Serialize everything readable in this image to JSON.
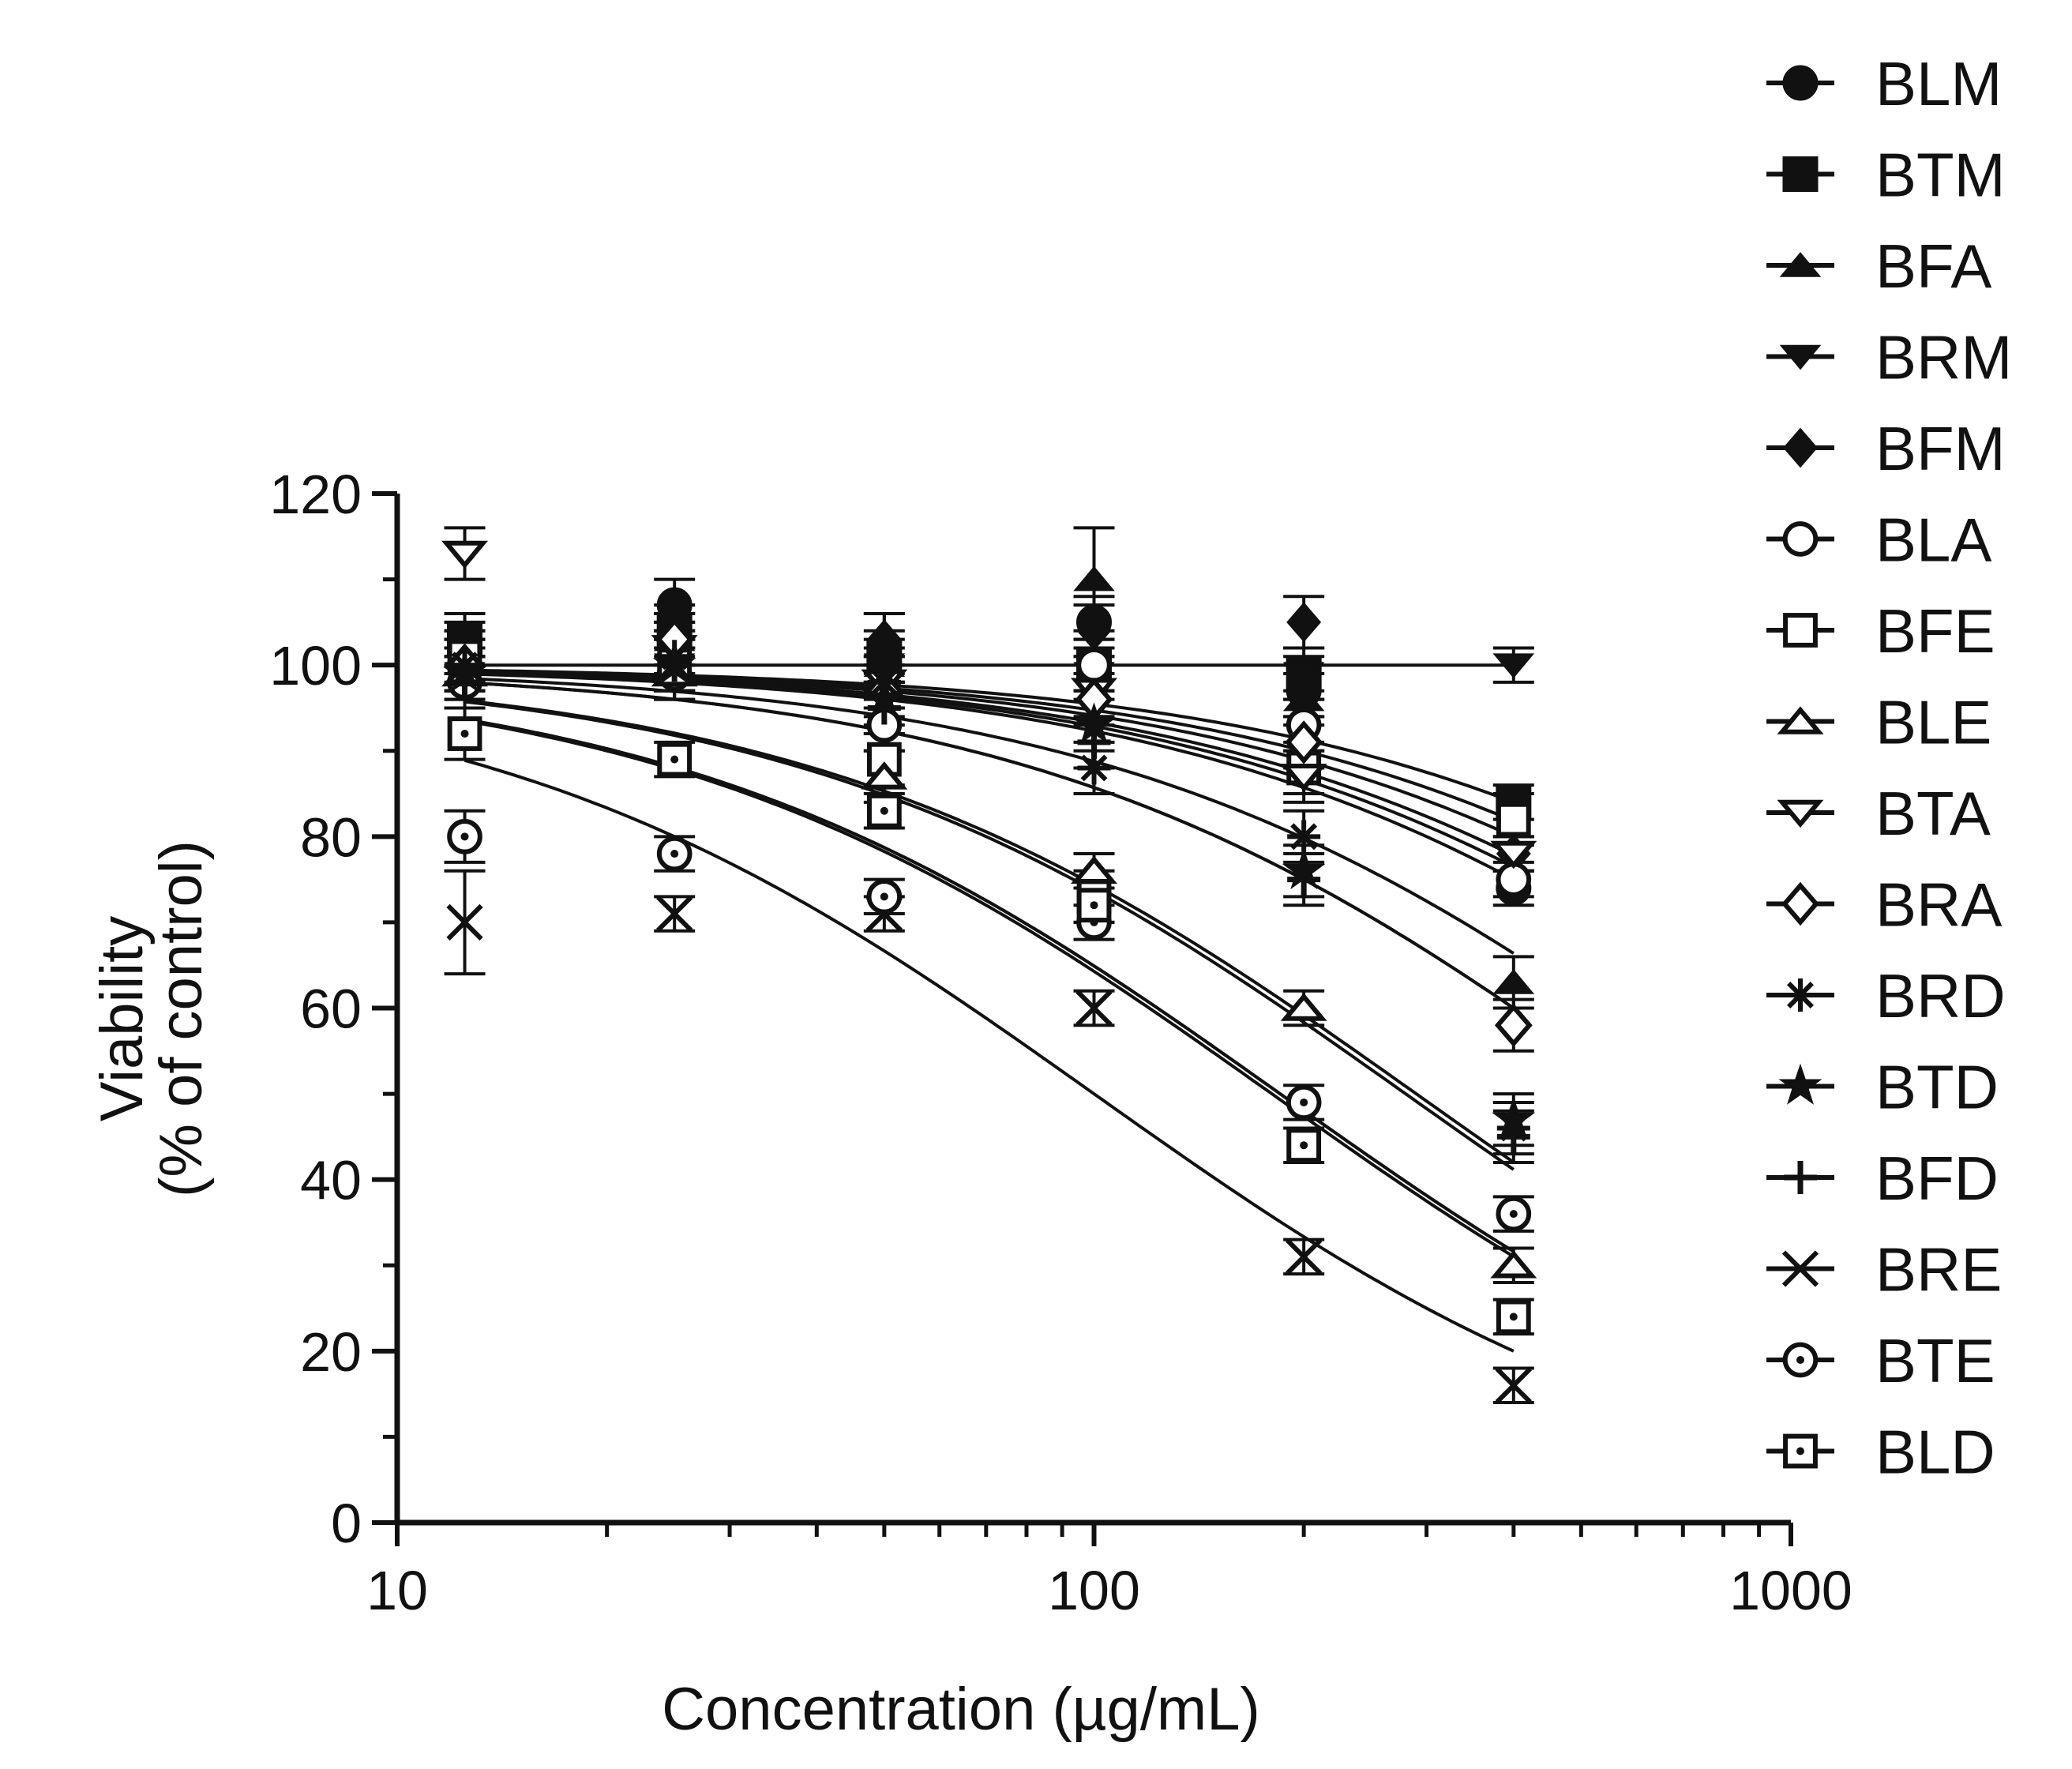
{
  "chart_data": {
    "type": "scatter",
    "title": "",
    "xlabel": "Concentration (µg/mL)",
    "ylabel_lines": [
      "Viability",
      "(% of control)"
    ],
    "xscale": "log",
    "xlim": [
      10,
      1000
    ],
    "ylim": [
      0,
      120
    ],
    "xticks": [
      {
        "value": 10,
        "label": "10"
      },
      {
        "value": 100,
        "label": "100"
      },
      {
        "value": 1000,
        "label": "1000"
      }
    ],
    "yticks": [
      {
        "value": 0,
        "label": "0"
      },
      {
        "value": 20,
        "label": "20"
      },
      {
        "value": 40,
        "label": "40"
      },
      {
        "value": 60,
        "label": "60"
      },
      {
        "value": 80,
        "label": "80"
      },
      {
        "value": 100,
        "label": "100"
      },
      {
        "value": 120,
        "label": "120"
      }
    ],
    "x": [
      12.5,
      25,
      50,
      100,
      200,
      400
    ],
    "legend_position": "right",
    "line_color": "#111111",
    "series": [
      {
        "name": "BLM",
        "marker": "circle-filled",
        "values": [
          100,
          107,
          102,
          105,
          97,
          74
        ],
        "errors": [
          3,
          3,
          4,
          3,
          3,
          2
        ],
        "fit_ic50": 1200,
        "fit_hill": 1.0
      },
      {
        "name": "BTM",
        "marker": "square-filled",
        "values": [
          103,
          104,
          101,
          100,
          99,
          84
        ],
        "errors": [
          3,
          3,
          3,
          3,
          3,
          2
        ],
        "fit_ic50": 2100,
        "fit_hill": 1.0
      },
      {
        "name": "BFA",
        "marker": "triangle-up-filled",
        "values": [
          101,
          103,
          100,
          110,
          96,
          63
        ],
        "errors": [
          3,
          3,
          3,
          6,
          3,
          3
        ],
        "fit_ic50": 790,
        "fit_hill": 1.0
      },
      {
        "name": "BRM",
        "marker": "triangle-down-filled",
        "values": [
          99,
          100,
          100,
          99,
          99,
          100
        ],
        "errors": [
          2,
          2,
          2,
          2,
          2,
          2
        ],
        "fit_ic50": null,
        "fit_hill": 1.0
      },
      {
        "name": "BFM",
        "marker": "diamond-filled",
        "values": [
          102,
          102,
          103,
          104,
          105,
          78
        ],
        "errors": [
          3,
          3,
          3,
          3,
          3,
          2
        ],
        "fit_ic50": 1600,
        "fit_hill": 1.0
      },
      {
        "name": "BLA",
        "marker": "circle-open",
        "values": [
          98,
          99,
          93,
          100,
          93,
          75
        ],
        "errors": [
          3,
          3,
          3,
          3,
          3,
          2
        ],
        "fit_ic50": 1400,
        "fit_hill": 1.0
      },
      {
        "name": "BFE",
        "marker": "square-open",
        "values": [
          101,
          100,
          89,
          73,
          88,
          82
        ],
        "errors": [
          3,
          3,
          3,
          3,
          3,
          3
        ],
        "fit_ic50": 1800,
        "fit_hill": 1.0
      },
      {
        "name": "BLE",
        "marker": "triangle-up-open",
        "values": [
          99,
          99,
          87,
          76,
          60,
          30
        ],
        "errors": [
          3,
          3,
          3,
          2,
          2,
          2
        ],
        "fit_ic50": 185,
        "fit_hill": 1.0
      },
      {
        "name": "BTA",
        "marker": "triangle-down-open",
        "values": [
          113,
          102,
          98,
          97,
          87,
          78
        ],
        "errors": [
          3,
          3,
          3,
          3,
          3,
          2
        ],
        "fit_ic50": 1300,
        "fit_hill": 1.0
      },
      {
        "name": "BRA",
        "marker": "diamond-open",
        "values": [
          100,
          103,
          97,
          96,
          91,
          58
        ],
        "errors": [
          3,
          3,
          3,
          3,
          3,
          3
        ],
        "fit_ic50": 600,
        "fit_hill": 1.0
      },
      {
        "name": "BRD",
        "marker": "asterisk",
        "values": [
          100,
          101,
          98,
          88,
          80,
          46
        ],
        "errors": [
          3,
          3,
          3,
          3,
          3,
          3
        ],
        "fit_ic50": 600,
        "fit_hill": 1.0
      },
      {
        "name": "BTD",
        "marker": "star",
        "values": [
          99,
          100,
          96,
          93,
          76,
          47
        ],
        "errors": [
          3,
          3,
          3,
          3,
          3,
          3
        ],
        "fit_ic50": 290,
        "fit_hill": 1.0
      },
      {
        "name": "BFD",
        "marker": "plus",
        "values": [
          98,
          100,
          95,
          91,
          75,
          45
        ],
        "errors": [
          3,
          3,
          3,
          3,
          3,
          3
        ],
        "fit_ic50": 280,
        "fit_hill": 1.0
      },
      {
        "name": "BRE",
        "marker": "cross",
        "values": [
          70,
          71,
          71,
          60,
          31,
          16
        ],
        "errors": [
          6,
          2,
          2,
          2,
          2,
          2
        ],
        "fit_ic50": 100,
        "fit_hill": 1.0
      },
      {
        "name": "BTE",
        "marker": "circle-dot",
        "values": [
          80,
          78,
          73,
          70,
          49,
          36
        ],
        "errors": [
          3,
          2,
          2,
          2,
          2,
          2
        ],
        "fit_ic50": 180,
        "fit_hill": 1.0
      },
      {
        "name": "BLD",
        "marker": "square-dot",
        "values": [
          92,
          89,
          83,
          72,
          44,
          24
        ],
        "errors": [
          3,
          2,
          2,
          2,
          2,
          2
        ],
        "fit_ic50": 185,
        "fit_hill": 1.0
      }
    ]
  }
}
